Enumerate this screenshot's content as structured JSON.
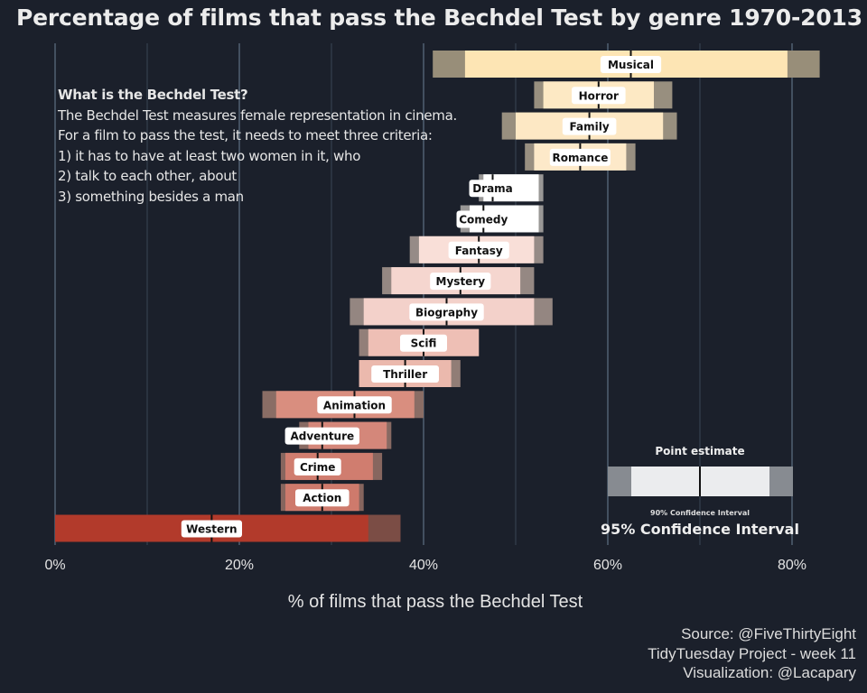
{
  "chart_data": {
    "type": "bar",
    "title": "Percentage of films that pass the Bechdel Test by genre 1970-2013",
    "xlabel": "% of films that pass the Bechdel Test",
    "ylabel": "",
    "xlim": [
      0,
      80
    ],
    "x_ticks": [
      "0%",
      "20%",
      "40%",
      "60%",
      "80%"
    ],
    "grid": true,
    "series": [
      {
        "name": "Point estimate",
        "values": [
          62.5,
          59,
          58,
          57,
          47.5,
          46.5,
          46,
          44,
          42.5,
          40,
          38,
          32.5,
          29,
          28.5,
          29,
          17
        ]
      },
      {
        "name": "90% Confidence Interval",
        "values": [
          [
            44.5,
            79.5
          ],
          [
            53,
            65
          ],
          [
            50,
            66
          ],
          [
            52,
            62
          ],
          [
            46.5,
            52.5
          ],
          [
            45,
            52.5
          ],
          [
            39.5,
            52
          ],
          [
            36.5,
            50.5
          ],
          [
            33.5,
            52
          ],
          [
            34,
            46
          ],
          [
            33,
            43
          ],
          [
            24,
            39
          ],
          [
            27.5,
            36
          ],
          [
            25,
            34.5
          ],
          [
            25,
            33
          ],
          [
            0,
            34
          ]
        ]
      },
      {
        "name": "95% Confidence Interval",
        "values": [
          [
            41,
            83
          ],
          [
            52,
            67
          ],
          [
            48.5,
            67.5
          ],
          [
            51,
            63
          ],
          [
            46,
            53
          ],
          [
            44,
            53
          ],
          [
            38.5,
            53
          ],
          [
            35.5,
            52
          ],
          [
            32,
            54
          ],
          [
            33,
            46
          ],
          [
            33,
            44
          ],
          [
            22.5,
            40
          ],
          [
            26.5,
            36.5
          ],
          [
            24.5,
            35.5
          ],
          [
            24.5,
            33.5
          ],
          [
            0,
            37.5
          ]
        ]
      }
    ],
    "categories": [
      "Musical",
      "Horror",
      "Family",
      "Romance",
      "Drama",
      "Comedy",
      "Fantasy",
      "Mystery",
      "Biography",
      "Scifi",
      "Thriller",
      "Animation",
      "Adventure",
      "Crime",
      "Action",
      "Western"
    ],
    "colors": [
      "#fde5b4",
      "#fde9c4",
      "#fde8c4",
      "#fde9c9",
      "#ffffff",
      "#ffffff",
      "#f9dfd8",
      "#f5d6cf",
      "#f3d1ca",
      "#eebfb5",
      "#ebb9ad",
      "#d98e7f",
      "#d4877a",
      "#d07d6f",
      "#ce7a6c",
      "#b23a2b"
    ],
    "legend": {
      "title": "Point estimate",
      "inner_label": "90% Confidence Interval",
      "outer_label": "95% Confidence Interval",
      "placement": "bottom-right"
    }
  },
  "info": {
    "question": "What is the Bechdel Test?",
    "lines": [
      "The Bechdel Test measures  female representation in cinema.",
      "For  a film to pass  the test, it needs  to meet  three criteria:",
      "1) it has to have at least  two women in it, who",
      "2) talk to each other, about",
      "3) something besides  a man"
    ]
  },
  "credits": {
    "source": "Source: @FiveThirtyEight",
    "project": "TidyTuesday Project - week 11",
    "viz": "Visualization: @Lacapary"
  },
  "colors": {
    "background": "#1b202b",
    "grid": "#56677a",
    "outer_ci_dark": "#6b6b68"
  }
}
